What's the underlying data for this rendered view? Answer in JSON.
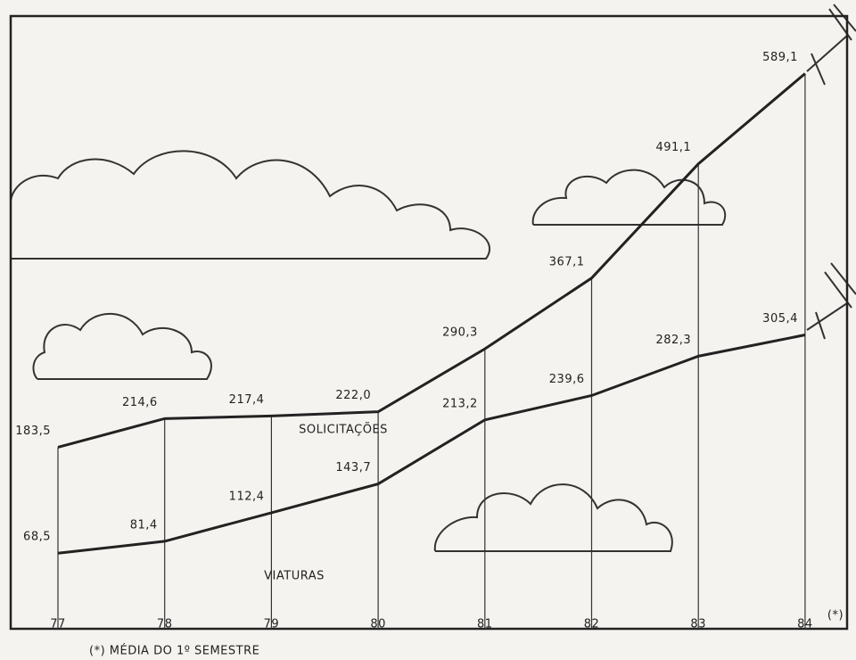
{
  "chart_data": {
    "type": "line",
    "categories": [
      "77",
      "78",
      "79",
      "80",
      "81",
      "82",
      "83",
      "84"
    ],
    "x_note": "(*)",
    "footnote": "(*) MÉDIA DO 1º SEMESTRE",
    "series": [
      {
        "name": "SOLICITAÇÕES",
        "color": "#222222",
        "values": [
          183.5,
          214.6,
          217.4,
          222,
          290.3,
          367.1,
          491.1,
          589.1
        ],
        "value_labels": [
          "183,5",
          "214,6",
          "217,4",
          "222,0",
          "290,3",
          "367,1",
          "491,1",
          "589,1"
        ]
      },
      {
        "name": "VIATURAS",
        "color": "#222222",
        "values": [
          68.5,
          81.4,
          112.4,
          143.7,
          213.2,
          239.6,
          282.3,
          305.4
        ],
        "value_labels": [
          "68,5",
          "81,4",
          "112,4",
          "143,7",
          "213,2",
          "239,6",
          "282,3",
          "305,4"
        ]
      }
    ]
  }
}
